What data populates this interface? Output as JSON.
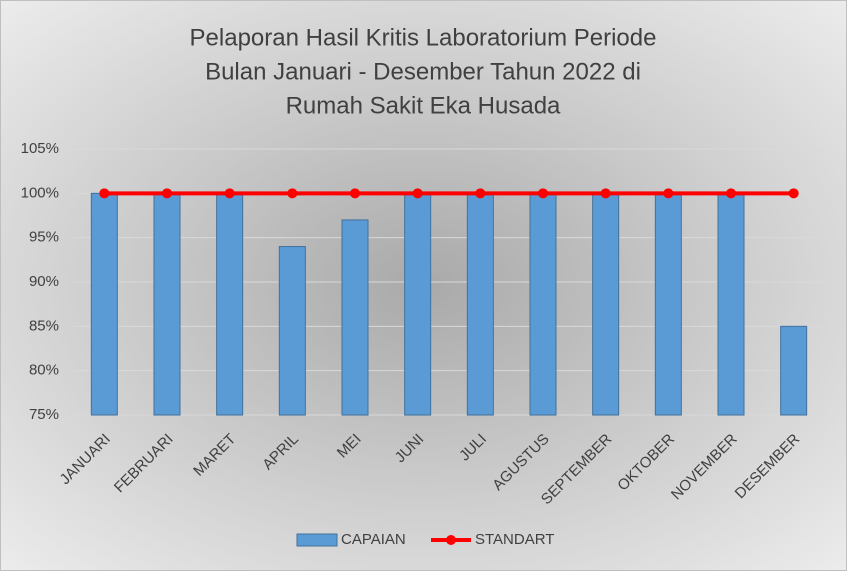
{
  "chart_data": {
    "type": "bar",
    "title": [
      "Pelaporan Hasil Kritis Laboratorium Periode",
      "Bulan Januari - Desember Tahun 2022 di",
      "Rumah Sakit Eka Husada"
    ],
    "categories": [
      "JANUARI",
      "FEBRUARI",
      "MARET",
      "APRIL",
      "MEI",
      "JUNI",
      "JULI",
      "AGUSTUS",
      "SEPTEMBER",
      "OKTOBER",
      "NOVEMBER",
      "DESEMBER"
    ],
    "series": [
      {
        "name": "CAPAIAN",
        "type": "bar",
        "color": "#5b9bd5",
        "values": [
          100,
          100,
          100,
          94,
          97,
          100,
          100,
          100,
          100,
          100,
          100,
          85
        ]
      },
      {
        "name": "STANDART",
        "type": "line",
        "color": "#ff0000",
        "values": [
          100,
          100,
          100,
          100,
          100,
          100,
          100,
          100,
          100,
          100,
          100,
          100
        ]
      }
    ],
    "ylim": [
      75,
      105
    ],
    "yticks": [
      {
        "value": 75,
        "label": "75%"
      },
      {
        "value": 80,
        "label": "80%"
      },
      {
        "value": 85,
        "label": "85%"
      },
      {
        "value": 90,
        "label": "90%"
      },
      {
        "value": 95,
        "label": "95%"
      },
      {
        "value": 100,
        "label": "100%"
      },
      {
        "value": 105,
        "label": "105%"
      }
    ],
    "grid": true,
    "legend": "bottom"
  }
}
